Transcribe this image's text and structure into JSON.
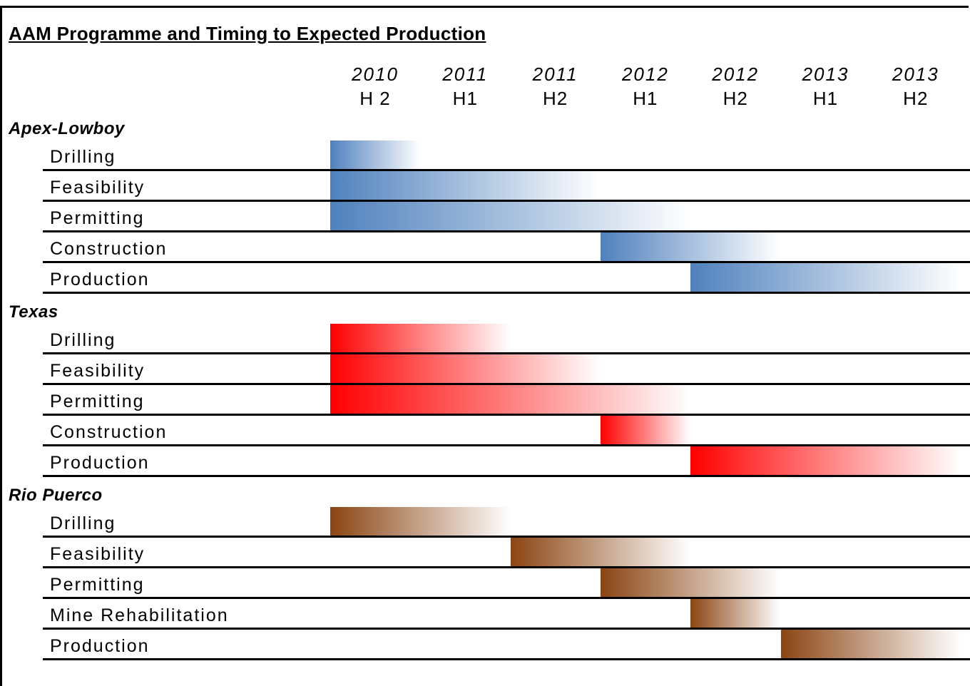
{
  "chart_data": {
    "type": "gantt",
    "title": "AAM Programme and Timing to Expected Production",
    "periods": [
      {
        "year": "2010",
        "half": "H 2"
      },
      {
        "year": "2011",
        "half": "H1"
      },
      {
        "year": "2011",
        "half": "H2"
      },
      {
        "year": "2012",
        "half": "H1"
      },
      {
        "year": "2012",
        "half": "H2"
      },
      {
        "year": "2013",
        "half": "H1"
      },
      {
        "year": "2013",
        "half": "H2"
      }
    ],
    "projects": [
      {
        "name": "Apex-Lowboy",
        "color": "#4f81bd",
        "tasks": [
          {
            "name": "Drilling",
            "start": 0,
            "end": 1
          },
          {
            "name": "Feasibility",
            "start": 0,
            "end": 3
          },
          {
            "name": "Permitting",
            "start": 0,
            "end": 4
          },
          {
            "name": "Construction",
            "start": 3,
            "end": 5
          },
          {
            "name": "Production",
            "start": 4,
            "end": 7
          }
        ]
      },
      {
        "name": "Texas",
        "color": "#ff0000",
        "tasks": [
          {
            "name": "Drilling",
            "start": 0,
            "end": 2
          },
          {
            "name": "Feasibility",
            "start": 0,
            "end": 3
          },
          {
            "name": "Permitting",
            "start": 0,
            "end": 4
          },
          {
            "name": "Construction",
            "start": 3,
            "end": 4
          },
          {
            "name": "Production",
            "start": 4,
            "end": 7
          }
        ]
      },
      {
        "name": "Rio Puerco",
        "color": "#8b4513",
        "tasks": [
          {
            "name": "Drilling",
            "start": 0,
            "end": 2
          },
          {
            "name": "Feasibility",
            "start": 2,
            "end": 4
          },
          {
            "name": "Permitting",
            "start": 3,
            "end": 5
          },
          {
            "name": "Mine Rehabilitation",
            "start": 4,
            "end": 5
          },
          {
            "name": "Production",
            "start": 5,
            "end": 7
          }
        ]
      }
    ]
  }
}
